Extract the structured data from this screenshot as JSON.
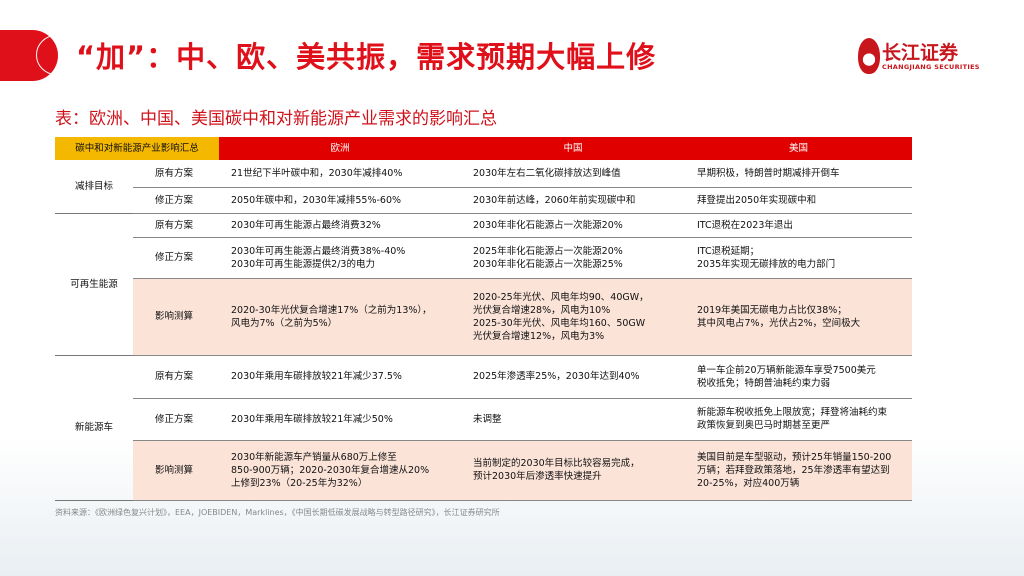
{
  "title": "“加”：中、欧、美共振，需求预期大幅上修",
  "logo": {
    "cn": "长江证券",
    "en": "CHANGJIANG SECURITIES"
  },
  "subtitle": "表：欧洲、中国、美国碳中和对新能源产业需求的影响汇总",
  "table": {
    "headers": [
      "碳中和对新能源产业影响汇总",
      "欧洲",
      "中国",
      "美国"
    ],
    "groups": [
      {
        "category": "减排目标",
        "rows": [
          {
            "label": "原有方案",
            "europe": "21世纪下半叶碳中和，2030年减排40%",
            "china": "2030年左右二氧化碳排放达到峰值",
            "usa": "早期积极，特朗普时期减排开倒车",
            "highlight": false
          },
          {
            "label": "修正方案",
            "europe": "2050年碳中和，2030年减排55%-60%",
            "china": "2030年前达峰，2060年前实现碳中和",
            "usa": "拜登提出2050年实现碳中和",
            "highlight": false
          }
        ]
      },
      {
        "category": "可再生能源",
        "rows": [
          {
            "label": "原有方案",
            "europe": "2030年可再生能源占最终消费32%",
            "china": "2030年非化石能源占一次能源20%",
            "usa": "ITC退税在2023年退出",
            "highlight": false
          },
          {
            "label": "修正方案",
            "europe": "2030年可再生能源占最终消费38%-40%\n2030年可再生能源提供2/3的电力",
            "china": "2025年非化石能源占一次能源20%\n2030年非化石能源占一次能源25%",
            "usa": "ITC退税延期；\n2035年实现无碳排放的电力部门",
            "highlight": false
          },
          {
            "label": "影响测算",
            "europe": "2020-30年光伏复合增速17%（之前为13%），\n风电为7%（之前为5%）",
            "china": "2020-25年光伏、风电年均90、40GW，\n光伏复合增速28%，风电为10%\n2025-30年光伏、风电年均160、50GW\n光伏复合增速12%，风电为3%",
            "usa": "2019年美国无碳电力占比仅38%；\n其中风电占7%，光伏占2%，空间极大",
            "highlight": true
          }
        ]
      },
      {
        "category": "新能源车",
        "rows": [
          {
            "label": "原有方案",
            "europe": "2030年乘用车碳排放较21年减少37.5%",
            "china": "2025年渗透率25%，2030年达到40%",
            "usa": "单一车企前20万辆新能源车享受7500美元\n税收抵免；特朗普油耗约束力弱",
            "highlight": false
          },
          {
            "label": "修正方案",
            "europe": "2030年乘用车碳排放较21年减少50%",
            "china": "未调整",
            "usa": "新能源车税收抵免上限放宽；拜登将油耗约束\n政策恢复到奥巴马时期甚至更严",
            "highlight": false
          },
          {
            "label": "影响测算",
            "europe": "2030年新能源车产销量从680万上修至\n850-900万辆；2020-2030年复合增速从20%\n上修到23%（20-25年为32%）",
            "china": "当前制定的2030年目标比较容易完成，\n预计2030年后渗透率快速提升",
            "usa": "美国目前是车型驱动，预计25年销量150-200\n万辆；若拜登政策落地，25年渗透率有望达到\n20-25%，对应400万辆",
            "highlight": true
          }
        ]
      }
    ]
  },
  "source": "资料来源：《欧洲绿色复兴计划》，EEA，JOEBIDEN，Marklines，《中国长期低碳发展战略与转型路径研究》，长江证券研究所",
  "colors": {
    "brand_red": "#e0101a",
    "header_red": "#e00000",
    "header_gold": "#f5b800",
    "highlight_pink": "#fbe3d8"
  }
}
